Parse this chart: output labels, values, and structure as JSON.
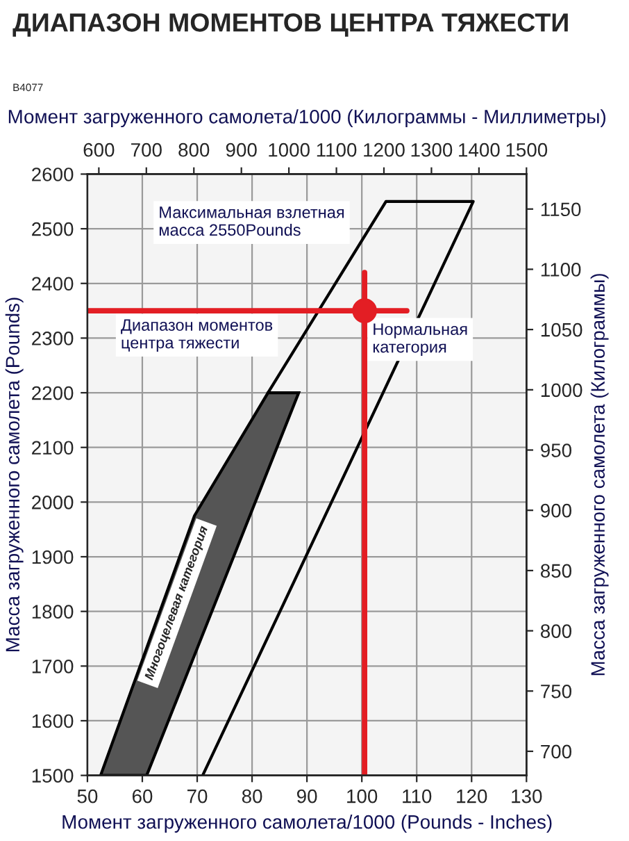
{
  "chart_data": {
    "type": "line",
    "title": "ДИАПАЗОН МОМЕНТОВ ЦЕНТРА ТЯЖЕСТИ",
    "xlabel": "Момент загруженного самолета/1000 (Pounds - Inches)",
    "x2label": "Момент загруженного самолета/1000 (Килограммы - Миллиметры)",
    "ylabel": "Масса загруженного самолета (Pounds)",
    "y2label": "Масса загруженного самолета (Килограммы)",
    "xlim": [
      50,
      130
    ],
    "xticks": [
      50,
      60,
      70,
      80,
      90,
      100,
      110,
      120,
      130
    ],
    "ylim": [
      1500,
      2600
    ],
    "yticks": [
      1500,
      1600,
      1700,
      1800,
      1900,
      2000,
      2100,
      2200,
      2300,
      2400,
      2500,
      2600
    ],
    "x2lim": [
      576,
      1500
    ],
    "x2ticks": [
      600,
      700,
      800,
      900,
      1000,
      1100,
      1200,
      1300,
      1400,
      1500
    ],
    "y2lim": [
      680,
      1179
    ],
    "y2ticks": [
      700,
      750,
      800,
      850,
      900,
      950,
      1000,
      1050,
      1100,
      1150
    ],
    "grid": true,
    "legend": false,
    "series": [
      {
        "type": "area",
        "name": "Многоцелевая категория",
        "color": "#555555",
        "x": [
          52.4,
          69.5,
          82.9,
          88.5,
          60.8
        ],
        "values": [
          1500,
          1975,
          2200,
          2200,
          1500
        ]
      },
      {
        "color": "#000000",
        "x": [
          82.9,
          104.4,
          120.3,
          71
        ],
        "values": [
          2200,
          2550,
          2550,
          1500
        ]
      },
      {
        "color": "#e31e24",
        "x": [
          50,
          108.2
        ],
        "values": [
          2350,
          2350
        ]
      },
      {
        "color": "#e31e24",
        "x": [
          100.5,
          100.5
        ],
        "values": [
          2420,
          1500
        ]
      },
      {
        "type": "scatter",
        "color": "#e31e24",
        "marker": "circle",
        "x": [
          100.5
        ],
        "values": [
          2350
        ]
      }
    ],
    "annotations": [
      "B4077",
      "Максимальная взлетная\nмасса 2550Pounds",
      "Диапазон моментов\nцентра тяжести",
      "Нормальная\nкатегория"
    ]
  }
}
